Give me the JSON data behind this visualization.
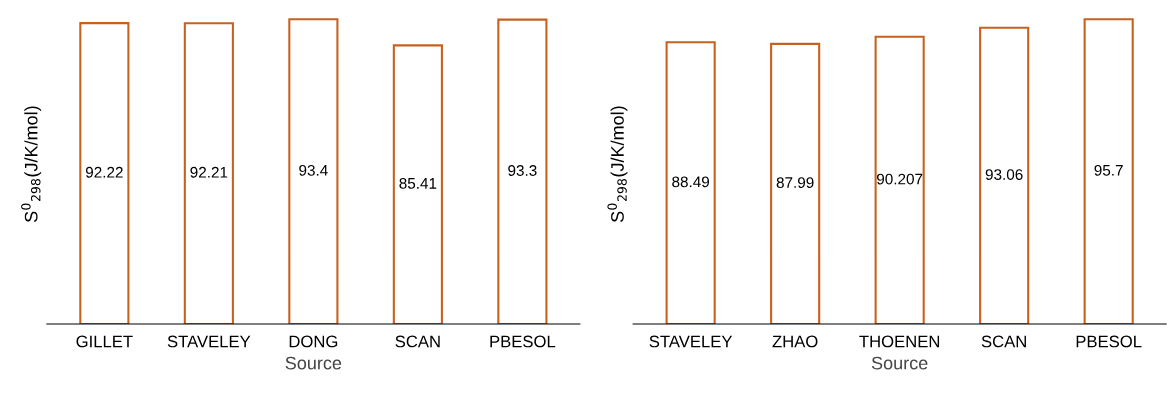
{
  "chart_data": [
    {
      "type": "bar",
      "xlabel": "Source",
      "ylabel": "S$^{0}$$_{298}$(J/K/mol)",
      "categories": [
        "GILLET",
        "STAVELEY",
        "DONG",
        "SCAN",
        "PBESOL"
      ],
      "values": [
        92.22,
        92.21,
        93.4,
        85.41,
        93.3
      ],
      "color": "#c8601e",
      "data_labels": true,
      "tick_labels": "x",
      "grid": false,
      "legend": false
    },
    {
      "type": "bar",
      "xlabel": "Source",
      "ylabel": "S$^{0}$$_{298}$(J/K/mol)",
      "categories": [
        "STAVELEY",
        "ZHAO",
        "THOENEN",
        "SCAN",
        "PBESOL"
      ],
      "values": [
        88.49,
        87.99,
        90.207,
        93.06,
        95.7
      ],
      "color": "#c8601e",
      "data_labels": true,
      "tick_labels": "x",
      "grid": false,
      "legend": false
    }
  ]
}
